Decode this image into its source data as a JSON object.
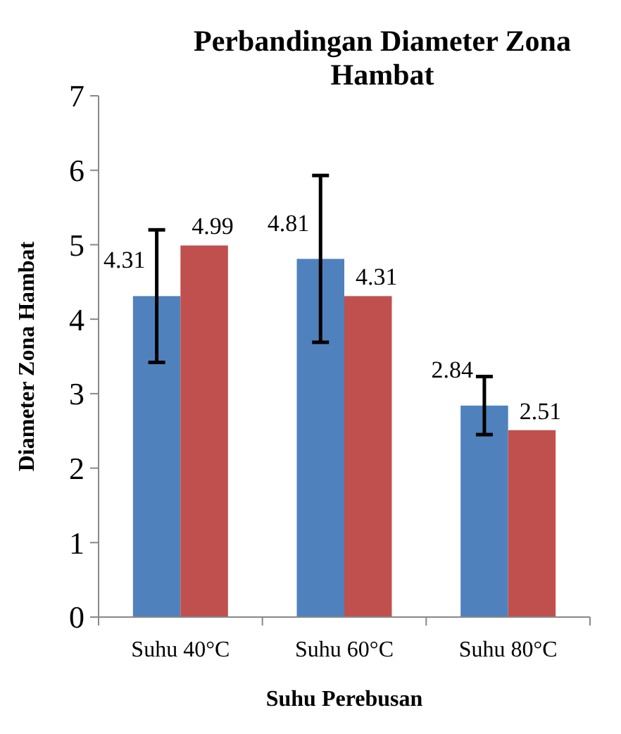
{
  "chart_data": {
    "type": "bar",
    "title": "Perbandingan Diameter Zona Hambat",
    "xlabel": "Suhu Perebusan",
    "ylabel": "Diameter Zona Hambat",
    "categories": [
      "Suhu 40°C",
      "Suhu 60°C",
      "Suhu 80°C"
    ],
    "series": [
      {
        "color": "#4f81bd",
        "values": [
          4.31,
          4.81,
          2.84
        ],
        "errors": [
          0.89,
          1.12,
          0.39
        ]
      },
      {
        "color": "#c0504d",
        "values": [
          4.99,
          4.31,
          2.51
        ]
      }
    ],
    "ylim": [
      0,
      7
    ],
    "yticks": [
      0,
      1,
      2,
      3,
      4,
      5,
      6,
      7
    ],
    "data_labels": true
  }
}
